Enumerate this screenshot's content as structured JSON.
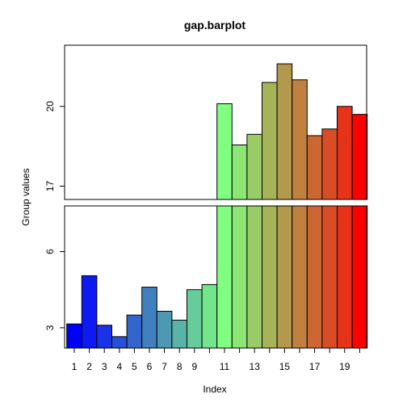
{
  "chart_data": {
    "type": "bar",
    "title": "gap.barplot",
    "xlabel": "Index",
    "ylabel": "Group values",
    "x": [
      1,
      2,
      3,
      4,
      5,
      6,
      7,
      8,
      9,
      10,
      11,
      12,
      13,
      14,
      15,
      16,
      17,
      18,
      19,
      20
    ],
    "values": [
      3.15,
      5.05,
      3.1,
      2.65,
      3.5,
      4.6,
      3.65,
      3.3,
      4.5,
      4.7,
      20.1,
      18.55,
      18.95,
      20.9,
      21.6,
      21.0,
      18.9,
      19.15,
      20.0,
      19.7
    ],
    "colors": [
      "#0000FF",
      "#0D1AF2",
      "#1A33E6",
      "#2650D9",
      "#3366CC",
      "#4080BF",
      "#4D99B3",
      "#59B3A6",
      "#66CC99",
      "#73E68C",
      "#80FF80",
      "#8CE673",
      "#99CC66",
      "#A6B359",
      "#B3994D",
      "#BF8040",
      "#CC6633",
      "#D94D26",
      "#E6331A",
      "#FF0000"
    ],
    "gap": [
      7.8,
      16.5
    ],
    "ylim_lower": [
      2.2,
      7.8
    ],
    "ylim_upper": [
      16.5,
      22.3
    ],
    "y_ticks_lower": [
      3,
      6
    ],
    "y_ticks_upper": [
      17,
      20
    ],
    "y_tick_labels_lower": [
      "3",
      "6"
    ],
    "y_tick_labels_upper": [
      "17",
      "20"
    ],
    "x_tick_labels": [
      "1",
      "2",
      "3",
      "4",
      "5",
      "6",
      "7",
      "8",
      "9",
      "",
      "11",
      "",
      "13",
      "",
      "15",
      "",
      "17",
      "",
      "19",
      ""
    ]
  }
}
